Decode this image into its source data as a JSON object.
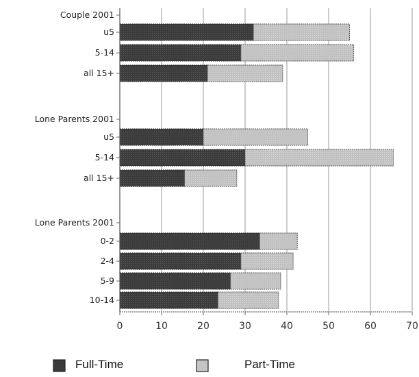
{
  "chart_data": {
    "type": "bar",
    "orientation": "horizontal",
    "stacked": true,
    "title": "",
    "xlabel": "",
    "ylabel": "",
    "xlim": [
      0,
      70
    ],
    "xticks": [
      0,
      10,
      20,
      30,
      40,
      50,
      60,
      70
    ],
    "grid": "vertical",
    "legend_position": "bottom",
    "groups": [
      {
        "label": "Couple 2001",
        "categories": [
          "u5",
          "5-14",
          "all 15+"
        ],
        "fulltime": [
          32,
          29,
          21
        ],
        "parttime": [
          23,
          27,
          18
        ]
      },
      {
        "label": "Lone Parents 2001",
        "categories": [
          "u5",
          "5-14",
          "all 15+"
        ],
        "fulltime": [
          20,
          30,
          15.5
        ],
        "parttime": [
          25,
          35.5,
          12.5
        ]
      },
      {
        "label": "Lone Parents 2001",
        "categories": [
          "0-2",
          "2-4",
          "5-9",
          "10-14"
        ],
        "fulltime": [
          33.5,
          29,
          26.5,
          23.5
        ],
        "parttime": [
          9,
          12.5,
          12,
          14.5
        ]
      }
    ],
    "series": [
      {
        "name": "Full-Time",
        "color": "#3a3a3a"
      },
      {
        "name": "Part-Time",
        "color": "#c4c4c4"
      }
    ]
  }
}
